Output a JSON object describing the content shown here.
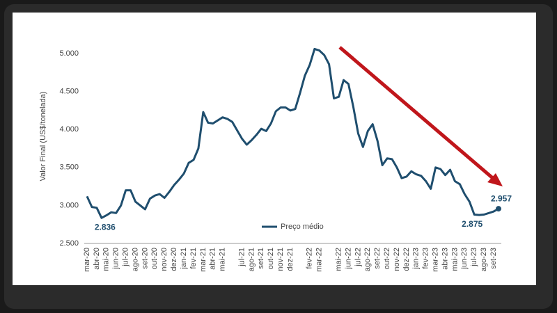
{
  "chart_data": {
    "type": "line",
    "y_label": "Valor Final (US$/tonelada)",
    "categories": [
      "mar-20",
      null,
      "abr-20",
      null,
      "mai-20",
      null,
      "jun-20",
      null,
      "jul-20",
      null,
      "ago-20",
      null,
      "set-20",
      null,
      "out-20",
      null,
      "nov-20",
      null,
      "dez-20",
      null,
      "jan-21",
      null,
      "fev-21",
      null,
      "mar-21",
      null,
      "abr-21",
      null,
      "mai-21",
      null,
      null,
      null,
      "jul-21",
      null,
      "ago-21",
      null,
      "set-21",
      null,
      "out-21",
      null,
      "nov-21",
      null,
      "dez-21",
      null,
      null,
      null,
      "fev-22",
      null,
      "mar-22",
      null,
      null,
      null,
      "mai-22",
      null,
      "jun-22",
      null,
      "jul-22",
      null,
      "ago-22",
      null,
      "set-22",
      null,
      "out-22",
      null,
      "nov-22",
      null,
      "dez-22",
      null,
      "jan-23",
      null,
      "fev-23",
      null,
      "mar-23",
      null,
      "abr-23",
      null,
      "mai-23",
      null,
      "jun-23",
      null,
      "jul-23",
      null,
      "ago-23",
      null,
      "set-23",
      null
    ],
    "series": [
      {
        "name": "Preço médio",
        "color": "#1f4e6e",
        "values": [
          3120,
          2980,
          2970,
          2836,
          2870,
          2910,
          2900,
          3000,
          3200,
          3200,
          3050,
          3000,
          2950,
          3090,
          3130,
          3150,
          3100,
          3180,
          3270,
          3340,
          3420,
          3560,
          3600,
          3750,
          4230,
          4090,
          4080,
          4120,
          4160,
          4140,
          4100,
          3990,
          3880,
          3800,
          3860,
          3930,
          4010,
          3980,
          4080,
          4240,
          4290,
          4290,
          4250,
          4270,
          4480,
          4710,
          4850,
          5060,
          5040,
          4980,
          4860,
          4410,
          4430,
          4650,
          4600,
          4300,
          3950,
          3770,
          3980,
          4070,
          3850,
          3530,
          3620,
          3610,
          3500,
          3360,
          3380,
          3450,
          3410,
          3390,
          3320,
          3220,
          3500,
          3480,
          3400,
          3470,
          3320,
          3280,
          3150,
          3050,
          2880,
          2875,
          2880,
          2900,
          2920,
          2957
        ],
        "value_labels": [
          null,
          null,
          null,
          "2.836",
          null,
          null,
          null,
          null,
          null,
          null,
          null,
          null,
          null,
          null,
          null,
          null,
          null,
          null,
          null,
          null,
          null,
          null,
          null,
          null,
          null,
          null,
          null,
          null,
          null,
          null,
          null,
          null,
          null,
          null,
          null,
          null,
          null,
          null,
          null,
          null,
          null,
          null,
          null,
          null,
          null,
          null,
          null,
          null,
          null,
          null,
          null,
          null,
          null,
          null,
          null,
          null,
          null,
          null,
          null,
          null,
          null,
          null,
          null,
          null,
          null,
          null,
          null,
          null,
          null,
          null,
          null,
          null,
          null,
          null,
          null,
          null,
          null,
          null,
          null,
          null,
          null,
          "2.875",
          null,
          null,
          null,
          "2.957"
        ]
      }
    ],
    "ylim": [
      2500,
      5000
    ],
    "yticks": [
      {
        "value": 2500,
        "label": "2.500"
      },
      {
        "value": 3000,
        "label": "3.000"
      },
      {
        "value": 3500,
        "label": "3.500"
      },
      {
        "value": 4000,
        "label": "4.000"
      },
      {
        "value": 4500,
        "label": "4.500"
      },
      {
        "value": 5000,
        "label": "5.000"
      }
    ],
    "legend": "bottom-center"
  }
}
